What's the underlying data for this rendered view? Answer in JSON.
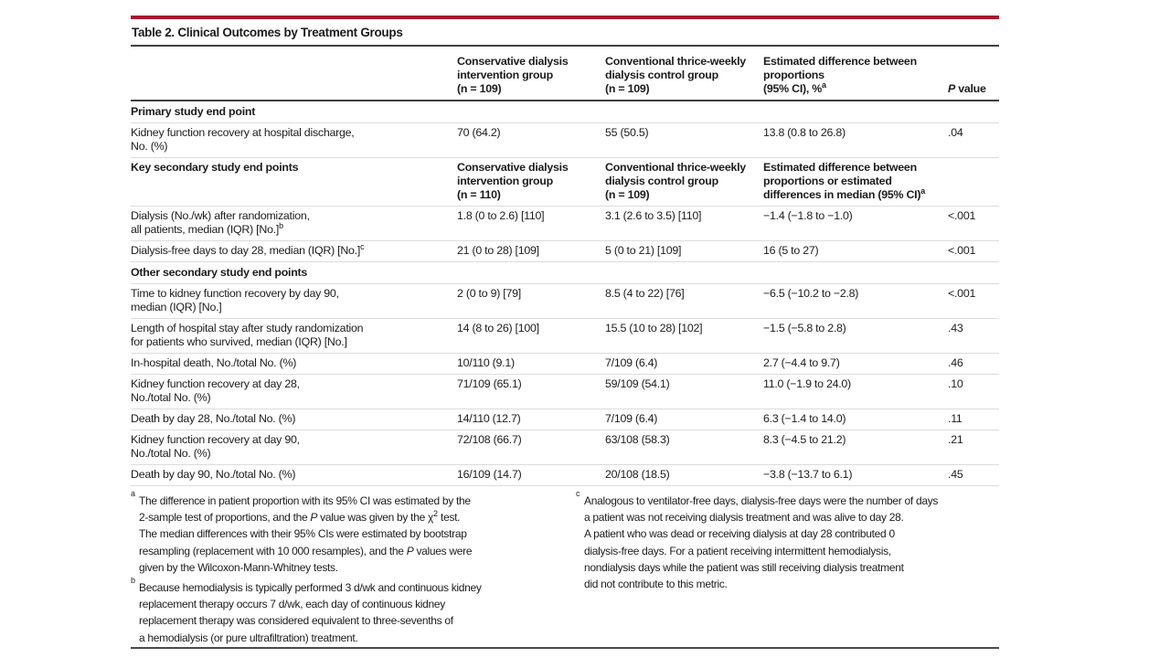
{
  "accent_color": "#A6192E",
  "table": {
    "title": "Table 2. Clinical Outcomes by Treatment Groups",
    "header": {
      "col2": "Conservative dialysis\nintervention group\n(n = 109)",
      "col3": "Conventional thrice-weekly\ndialysis control group\n(n = 109)",
      "col4": [
        {
          "t": "Estimated difference between\nproportions\n(95% CI), %"
        },
        {
          "t": "a",
          "s": 1
        }
      ],
      "col5": [
        {
          "t": "P",
          "i": 1
        },
        {
          "t": " value"
        }
      ]
    },
    "rows": [
      {
        "type": "section",
        "label": "Primary study end point"
      },
      {
        "type": "data",
        "label": "Kidney function recovery at hospital discharge,\nNo. (%)",
        "c1": "70 (64.2)",
        "c2": "55 (50.5)",
        "c3": "13.8 (0.8 to 26.8)",
        "p": ".04"
      },
      {
        "type": "subheader",
        "label": "Key secondary study end points",
        "h1": "Conservative dialysis\nintervention group\n(n = 110)",
        "h2": "Conventional thrice-weekly\ndialysis control group\n(n = 109)",
        "h3": [
          {
            "t": "Estimated difference between\nproportions or estimated\ndifferences in median (95% CI)"
          },
          {
            "t": "a",
            "s": 1
          }
        ]
      },
      {
        "type": "data",
        "label_rich": [
          {
            "t": "Dialysis (No./wk) after randomization,\nall patients, median (IQR) [No.]"
          },
          {
            "t": "b",
            "s": 1
          }
        ],
        "c1": "1.8 (0 to 2.6) [110]",
        "c2": "3.1 (2.6 to 3.5) [110]",
        "c3": "−1.4 (−1.8 to −1.0)",
        "p": "<.001"
      },
      {
        "type": "data",
        "label_rich": [
          {
            "t": "Dialysis-free days to day 28, median (IQR) [No.]"
          },
          {
            "t": "c",
            "s": 1
          }
        ],
        "c1": "21 (0 to 28) [109]",
        "c2": "5 (0 to 21) [109]",
        "c3": "16 (5 to 27)",
        "p": "<.001"
      },
      {
        "type": "section",
        "label": "Other secondary study end points"
      },
      {
        "type": "data",
        "label": "Time to kidney function recovery by day 90,\nmedian (IQR) [No.]",
        "c1": "2 (0 to 9) [79]",
        "c2": "8.5 (4 to 22) [76]",
        "c3": "−6.5 (−10.2 to −2.8)",
        "p": "<.001"
      },
      {
        "type": "data",
        "label": "Length of hospital stay after study randomization\nfor patients who survived, median (IQR) [No.]",
        "c1": "14 (8 to 26) [100]",
        "c2": "15.5 (10 to 28) [102]",
        "c3": "−1.5 (−5.8 to 2.8)",
        "p": ".43"
      },
      {
        "type": "data",
        "label": "In-hospital death, No./total No. (%)",
        "c1": "10/110 (9.1)",
        "c2": "7/109 (6.4)",
        "c3": "2.7 (−4.4 to 9.7)",
        "p": ".46"
      },
      {
        "type": "data",
        "label": "Kidney function recovery at day 28,\nNo./total No. (%)",
        "c1": "71/109 (65.1)",
        "c2": "59/109 (54.1)",
        "c3": "11.0 (−1.9 to 24.0)",
        "p": ".10"
      },
      {
        "type": "data",
        "label": "Death by day 28, No./total No. (%)",
        "c1": "14/110 (12.7)",
        "c2": "7/109 (6.4)",
        "c3": "6.3 (−1.4 to 14.0)",
        "p": ".11"
      },
      {
        "type": "data",
        "label": "Kidney function recovery at day 90,\nNo./total No. (%)",
        "c1": "72/108 (66.7)",
        "c2": "63/108 (58.3)",
        "c3": "8.3 (−4.5 to 21.2)",
        "p": ".21"
      },
      {
        "type": "data",
        "label": "Death by day 90, No./total No. (%)",
        "c1": "16/109 (14.7)",
        "c2": "20/108 (18.5)",
        "c3": "−3.8 (−13.7 to 6.1)",
        "p": ".45"
      }
    ],
    "footnotes": {
      "a": {
        "marker": "a",
        "text": [
          {
            "t": "The difference in patient proportion with its 95% CI was estimated by the\n2-sample test of proportions, and the "
          },
          {
            "t": "P",
            "i": 1
          },
          {
            "t": " value was given by the χ"
          },
          {
            "t": "2",
            "s": 1
          },
          {
            "t": " test.\nThe median differences with their 95% CIs were estimated by bootstrap\nresampling (replacement with 10 000 resamples), and the "
          },
          {
            "t": "P",
            "i": 1
          },
          {
            "t": " values were\ngiven by the Wilcoxon-Mann-Whitney tests."
          }
        ]
      },
      "b": {
        "marker": "b",
        "text": [
          {
            "t": "Because hemodialysis is typically performed 3 d/wk and continuous kidney\nreplacement therapy occurs 7 d/wk, each day of continuous kidney\nreplacement therapy was considered equivalent to three-sevenths of\na hemodialysis (or pure ultrafiltration) treatment."
          }
        ]
      },
      "c": {
        "marker": "c",
        "text": [
          {
            "t": "Analogous to ventilator-free days, dialysis-free days were the number of days\na patient was not receiving dialysis treatment and was alive to day 28.\nA patient who was dead or receiving dialysis at day 28 contributed 0\ndialysis-free days. For a patient receiving intermittent hemodialysis,\nnondialysis days while the patient was still receiving dialysis treatment\ndid not contribute to this metric."
          }
        ]
      }
    }
  }
}
